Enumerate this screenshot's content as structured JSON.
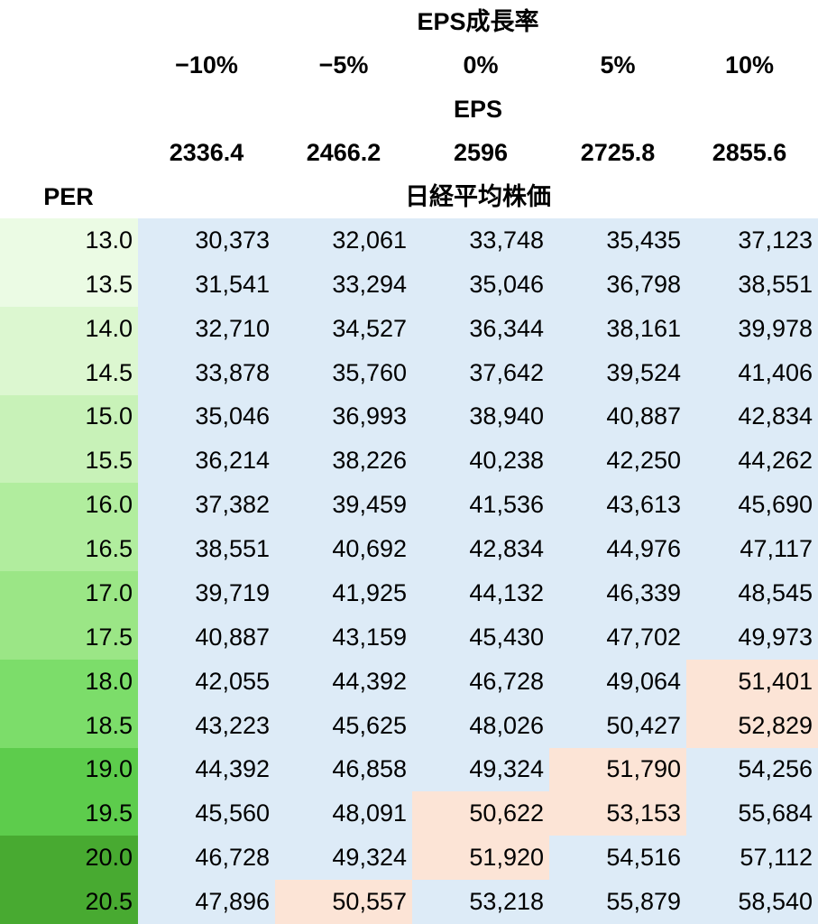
{
  "header": {
    "growth_title": "EPS成長率",
    "growth_rates": [
      "−10%",
      "−5%",
      "0%",
      "5%",
      "10%"
    ],
    "eps_title": "EPS",
    "eps_values": [
      "2336.4",
      "2466.2",
      "2596",
      "2725.8",
      "2855.6"
    ],
    "per_label": "PER",
    "price_title": "日経平均株価"
  },
  "colors": {
    "value_bg": "#ddebf7",
    "highlight_bg": "#fce4d6",
    "per_greens": [
      "#ebfbe4",
      "#dcf7d0",
      "#c8f2b8",
      "#b1ed9e",
      "#9be686",
      "#7cdd6a",
      "#5dcc4c",
      "#48aa31"
    ]
  },
  "table": {
    "rows": [
      {
        "per": "13.0",
        "values": [
          "30,373",
          "32,061",
          "33,748",
          "35,435",
          "37,123"
        ],
        "highlight": []
      },
      {
        "per": "13.5",
        "values": [
          "31,541",
          "33,294",
          "35,046",
          "36,798",
          "38,551"
        ],
        "highlight": []
      },
      {
        "per": "14.0",
        "values": [
          "32,710",
          "34,527",
          "36,344",
          "38,161",
          "39,978"
        ],
        "highlight": []
      },
      {
        "per": "14.5",
        "values": [
          "33,878",
          "35,760",
          "37,642",
          "39,524",
          "41,406"
        ],
        "highlight": []
      },
      {
        "per": "15.0",
        "values": [
          "35,046",
          "36,993",
          "38,940",
          "40,887",
          "42,834"
        ],
        "highlight": []
      },
      {
        "per": "15.5",
        "values": [
          "36,214",
          "38,226",
          "40,238",
          "42,250",
          "44,262"
        ],
        "highlight": []
      },
      {
        "per": "16.0",
        "values": [
          "37,382",
          "39,459",
          "41,536",
          "43,613",
          "45,690"
        ],
        "highlight": []
      },
      {
        "per": "16.5",
        "values": [
          "38,551",
          "40,692",
          "42,834",
          "44,976",
          "47,117"
        ],
        "highlight": []
      },
      {
        "per": "17.0",
        "values": [
          "39,719",
          "41,925",
          "44,132",
          "46,339",
          "48,545"
        ],
        "highlight": []
      },
      {
        "per": "17.5",
        "values": [
          "40,887",
          "43,159",
          "45,430",
          "47,702",
          "49,973"
        ],
        "highlight": []
      },
      {
        "per": "18.0",
        "values": [
          "42,055",
          "44,392",
          "46,728",
          "49,064",
          "51,401"
        ],
        "highlight": [
          4
        ]
      },
      {
        "per": "18.5",
        "values": [
          "43,223",
          "45,625",
          "48,026",
          "50,427",
          "52,829"
        ],
        "highlight": [
          4
        ]
      },
      {
        "per": "19.0",
        "values": [
          "44,392",
          "46,858",
          "49,324",
          "51,790",
          "54,256"
        ],
        "highlight": [
          3
        ]
      },
      {
        "per": "19.5",
        "values": [
          "45,560",
          "48,091",
          "50,622",
          "53,153",
          "55,684"
        ],
        "highlight": [
          2,
          3
        ]
      },
      {
        "per": "20.0",
        "values": [
          "46,728",
          "49,324",
          "51,920",
          "54,516",
          "57,112"
        ],
        "highlight": [
          2
        ]
      },
      {
        "per": "20.5",
        "values": [
          "47,896",
          "50,557",
          "53,218",
          "55,879",
          "58,540"
        ],
        "highlight": [
          1
        ]
      }
    ]
  }
}
